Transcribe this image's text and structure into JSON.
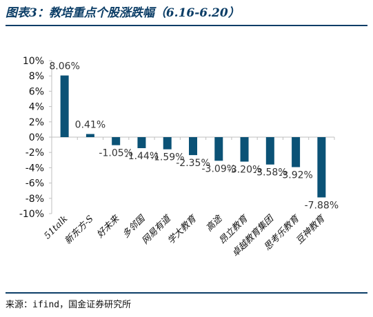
{
  "title": "图表3：教培重点个股涨跌幅（6.16-6.20）",
  "source": "来源：ifind，国金证券研究所",
  "colors": {
    "bar": "#0b5276",
    "title": "#0b3d66",
    "axis": "#bfbfbf"
  },
  "chart_data": {
    "type": "bar",
    "title": "图表3：教培重点个股涨跌幅（6.16-6.20）",
    "xlabel": "",
    "ylabel": "",
    "ylim": [
      -10,
      10
    ],
    "yticks": [
      10,
      8,
      6,
      4,
      2,
      0,
      -2,
      -4,
      -6,
      -8,
      -10
    ],
    "ytick_labels": [
      "10%",
      "8%",
      "6%",
      "4%",
      "2%",
      "0%",
      "-2%",
      "-4%",
      "-6%",
      "-8%",
      "-10%"
    ],
    "grid": false,
    "legend": "none",
    "categories": [
      "51talk",
      "新东方-S",
      "好未来",
      "多邻国",
      "网易有道",
      "学大教育",
      "高途",
      "昂立教育",
      "卓越教育集团",
      "思考乐教育",
      "豆神教育"
    ],
    "values": [
      8.06,
      0.41,
      -1.05,
      -1.44,
      -1.59,
      -2.35,
      -3.09,
      -3.2,
      -3.58,
      -3.92,
      -7.88
    ],
    "data_labels": [
      "8.06%",
      "0.41%",
      "-1.05%",
      "-1.44%",
      "-1.59%",
      "-2.35%",
      "-3.09%",
      "-3.20%",
      "-3.58%",
      "-3.92%",
      "-7.88%"
    ]
  }
}
